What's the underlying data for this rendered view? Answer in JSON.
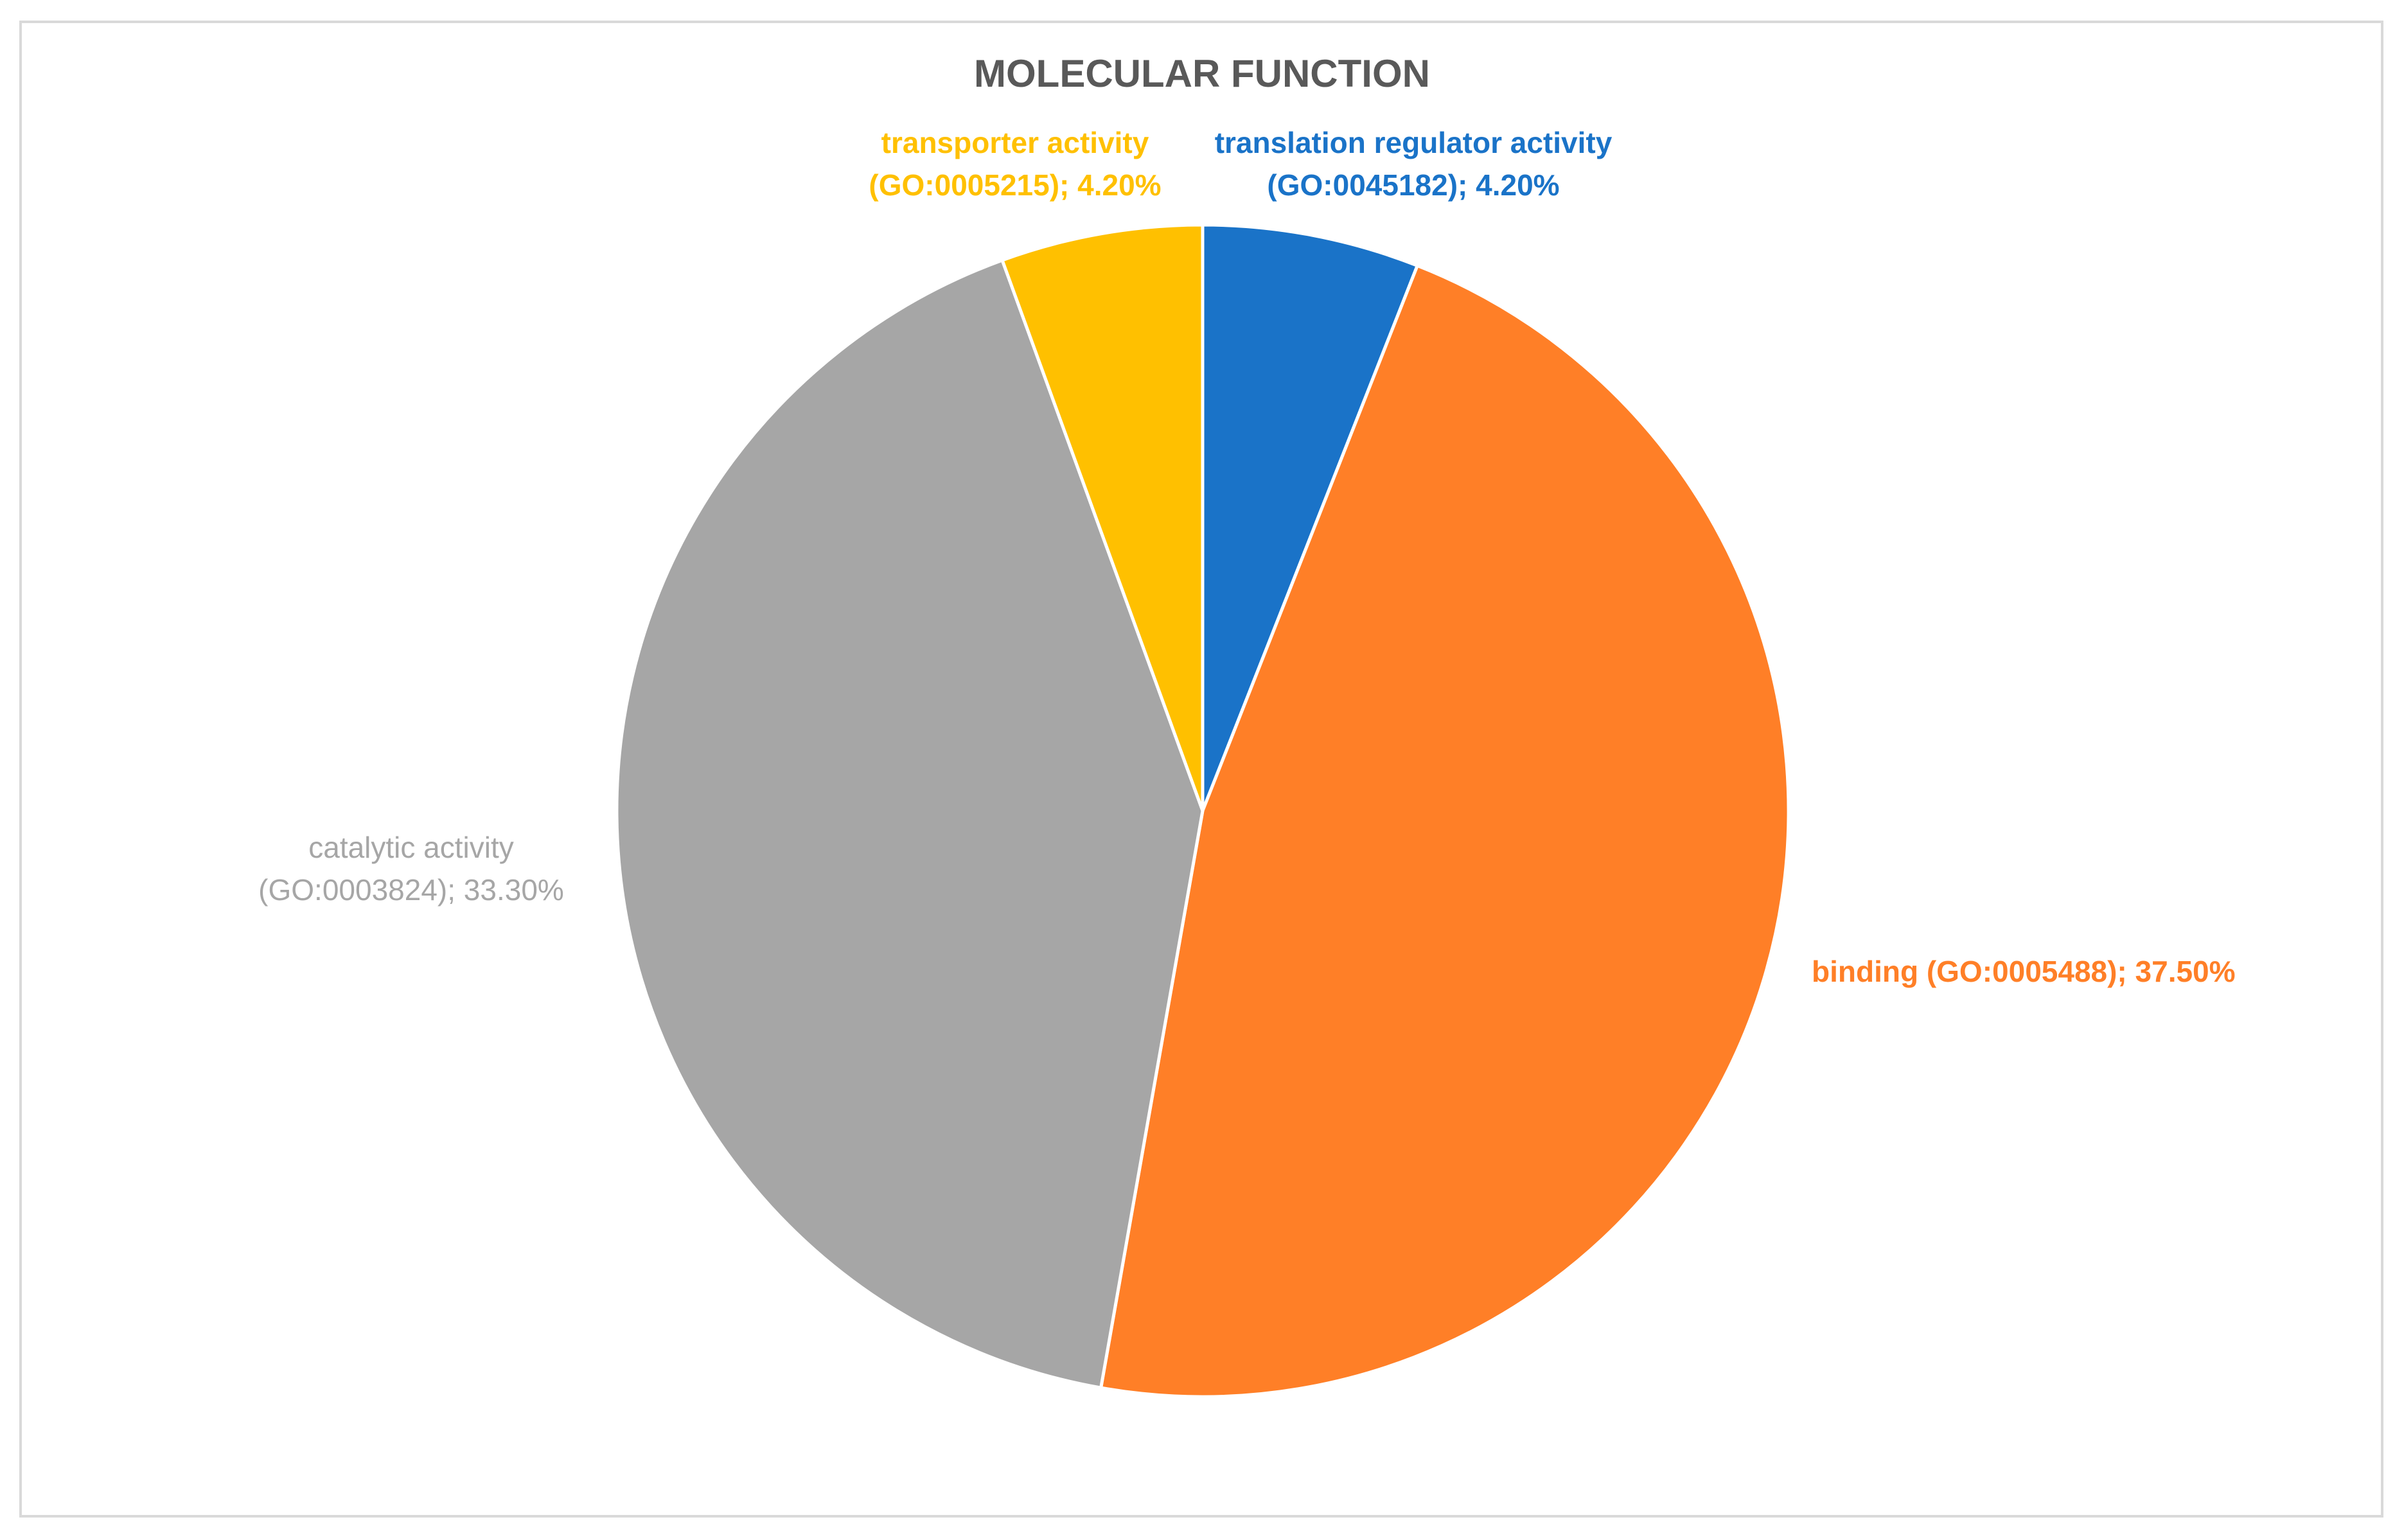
{
  "chart_data": {
    "type": "pie",
    "title": "MOLECULAR FUNCTION",
    "slices": [
      {
        "label": "translation regulator activity (GO:0045182); 4.20%",
        "label_lines": [
          "translation regulator activity",
          "(GO:0045182); 4.20%"
        ],
        "value": 4.2,
        "color": "#1a73c8"
      },
      {
        "label": "binding (GO:0005488); 37.50%",
        "label_lines": [
          "binding (GO:0005488); 37.50%"
        ],
        "value": 37.5,
        "color": "#ff7f27"
      },
      {
        "label": "catalytic activity (GO:0003824); 33.30%",
        "label_lines": [
          "catalytic activity",
          "(GO:0003824); 33.30%"
        ],
        "value": 33.3,
        "color": "#a6a6a6"
      },
      {
        "label": "transporter activity (GO:0005215); 4.20%",
        "label_lines": [
          "transporter activity",
          "(GO:0005215); 4.20%"
        ],
        "value": 4.2,
        "color": "#ffc000"
      }
    ],
    "start_angle": "12 o'clock",
    "direction": "clockwise",
    "legend": "none (data labels outside slices)"
  }
}
